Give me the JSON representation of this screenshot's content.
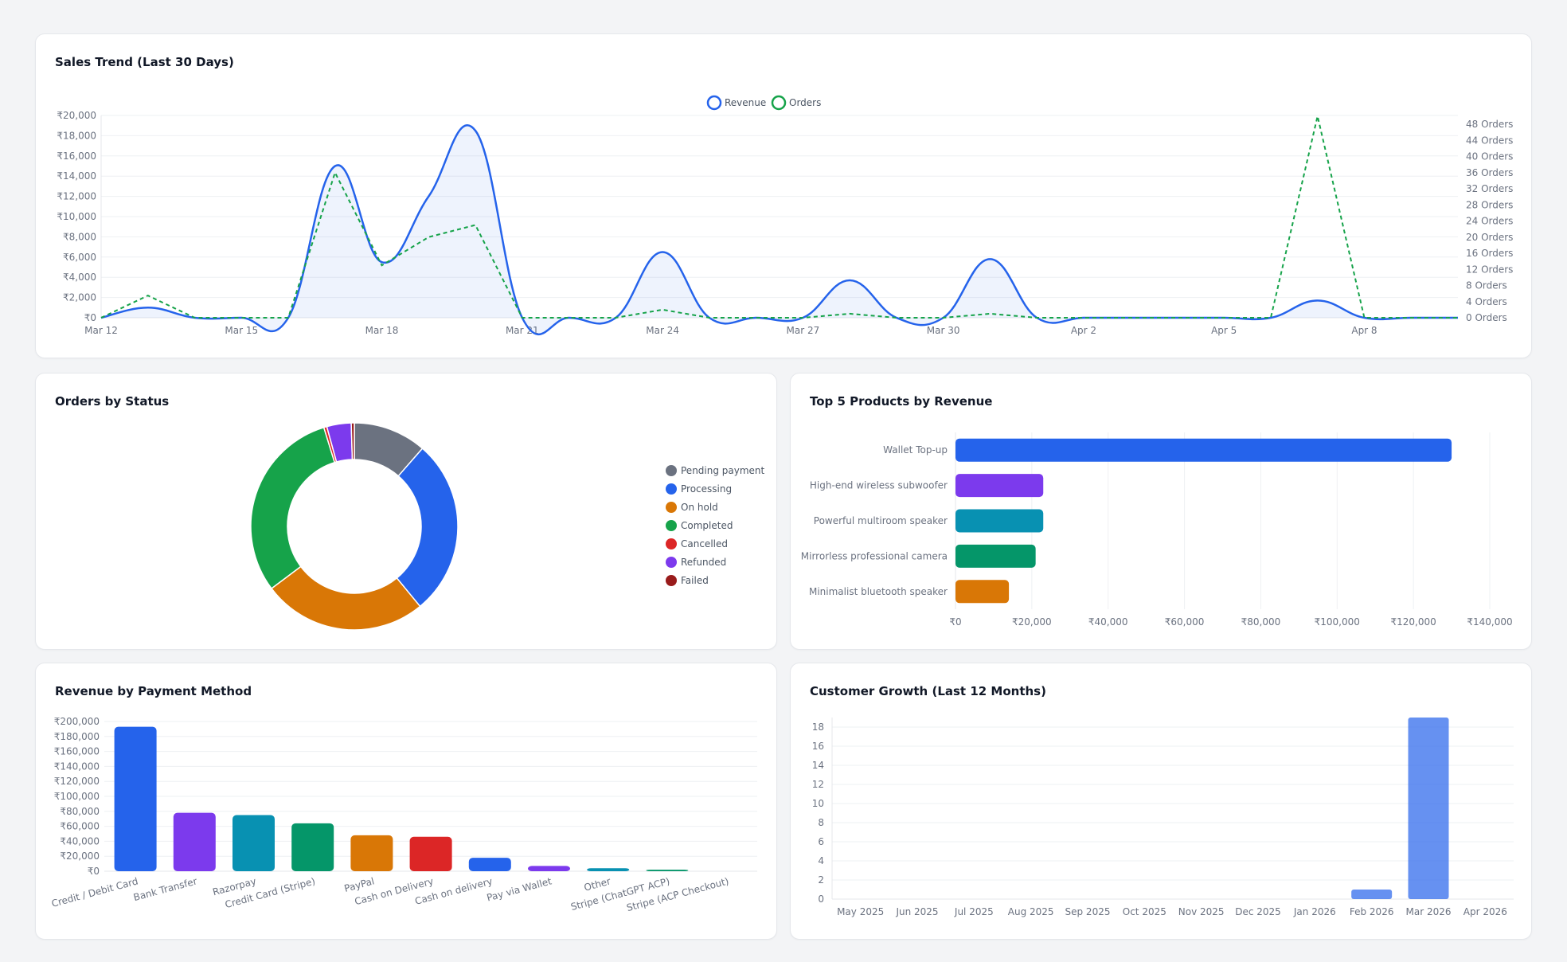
{
  "colors": {
    "revenue": "#2563eb",
    "orders": "#16a34a",
    "grid": "#eef0f3",
    "tick": "#6b7280"
  },
  "cards": {
    "sales_trend": {
      "title": "Sales Trend (Last 30 Days)"
    },
    "orders_by_status": {
      "title": "Orders by Status"
    },
    "top_products": {
      "title": "Top 5 Products by Revenue"
    },
    "payment_methods": {
      "title": "Revenue by Payment Method"
    },
    "customer_growth": {
      "title": "Customer Growth (Last 12 Months)"
    }
  },
  "chart_data": [
    {
      "id": "sales_trend",
      "type": "line",
      "title": "Sales Trend (Last 30 Days)",
      "x": [
        "Mar 12",
        "Mar 13",
        "Mar 14",
        "Mar 15",
        "Mar 16",
        "Mar 17",
        "Mar 18",
        "Mar 19",
        "Mar 20",
        "Mar 21",
        "Mar 22",
        "Mar 23",
        "Mar 24",
        "Mar 25",
        "Mar 26",
        "Mar 27",
        "Mar 28",
        "Mar 29",
        "Mar 30",
        "Mar 31",
        "Apr 1",
        "Apr 2",
        "Apr 3",
        "Apr 4",
        "Apr 5",
        "Apr 6",
        "Apr 7",
        "Apr 8",
        "Apr 9",
        "Apr 10"
      ],
      "x_tick_labels": [
        "Mar 12",
        "Mar 15",
        "Mar 18",
        "Mar 21",
        "Mar 24",
        "Mar 27",
        "Mar 30",
        "Apr 2",
        "Apr 5",
        "Apr 8"
      ],
      "series": [
        {
          "name": "Revenue",
          "axis": "left",
          "style": "solid-fill",
          "color": "#2563eb",
          "values": [
            0,
            1000,
            0,
            0,
            0,
            15000,
            5500,
            12000,
            18500,
            0,
            0,
            0,
            6500,
            0,
            0,
            0,
            3700,
            0,
            0,
            5800,
            0,
            0,
            0,
            0,
            0,
            0,
            1700,
            0,
            0,
            0
          ]
        },
        {
          "name": "Orders",
          "axis": "right",
          "style": "dashed",
          "color": "#16a34a",
          "values": [
            0,
            5.5,
            0,
            0,
            0,
            36,
            13,
            20,
            23,
            0,
            0,
            0,
            2,
            0,
            0,
            0,
            1,
            0,
            0,
            1,
            0,
            0,
            0,
            0,
            0,
            0,
            50,
            0,
            0,
            0
          ]
        }
      ],
      "y_left": {
        "min": 0,
        "max": 20000,
        "step": 2000,
        "tick_labels": [
          "₹0",
          "₹2,000",
          "₹4,000",
          "₹6,000",
          "₹8,000",
          "₹10,000",
          "₹12,000",
          "₹14,000",
          "₹16,000",
          "₹18,000",
          "₹20,000"
        ]
      },
      "y_right": {
        "min": 0,
        "max": 48,
        "step": 4,
        "tick_labels": [
          "0 Orders",
          "4 Orders",
          "8 Orders",
          "12 Orders",
          "16 Orders",
          "20 Orders",
          "24 Orders",
          "28 Orders",
          "32 Orders",
          "36 Orders",
          "40 Orders",
          "44 Orders",
          "48 Orders"
        ]
      },
      "legend": {
        "placement": "top-center",
        "items": [
          "Revenue",
          "Orders"
        ]
      },
      "grid": true
    },
    {
      "id": "orders_by_status",
      "type": "pie",
      "variant": "doughnut",
      "title": "Orders by Status",
      "categories": [
        "Pending payment",
        "Processing",
        "On hold",
        "Completed",
        "Cancelled",
        "Refunded",
        "Failed"
      ],
      "values": [
        12,
        29,
        27,
        32,
        0.5,
        4,
        0.5
      ],
      "colors": [
        "#6b7280",
        "#2563eb",
        "#d97706",
        "#16a34a",
        "#dc2626",
        "#7c3aed",
        "#991b1b"
      ],
      "legend": {
        "placement": "right"
      }
    },
    {
      "id": "top_products",
      "type": "bar",
      "orientation": "horizontal",
      "title": "Top 5 Products by Revenue",
      "categories": [
        "Wallet Top-up",
        "High-end wireless subwoofer",
        "Powerful multiroom speaker",
        "Mirrorless professional camera",
        "Minimalist bluetooth speaker"
      ],
      "values": [
        130000,
        23000,
        23000,
        21000,
        14000
      ],
      "colors": [
        "#2563eb",
        "#7c3aed",
        "#0891b2",
        "#059669",
        "#d97706"
      ],
      "xlim": [
        0,
        140000
      ],
      "x_tick_labels": [
        "₹0",
        "₹20,000",
        "₹40,000",
        "₹60,000",
        "₹80,000",
        "₹100,000",
        "₹120,000",
        "₹140,000"
      ],
      "grid": true
    },
    {
      "id": "payment_methods",
      "type": "bar",
      "title": "Revenue by Payment Method",
      "categories": [
        "Credit / Debit Card",
        "Bank Transfer",
        "Razorpay",
        "Credit Card (Stripe)",
        "PayPal",
        "Cash on Delivery",
        "Cash on delivery",
        "Pay via Wallet",
        "Other",
        "Stripe (ChatGPT ACP)",
        "Stripe (ACP Checkout)"
      ],
      "values": [
        193000,
        78000,
        75000,
        64000,
        48000,
        46000,
        18000,
        7000,
        4000,
        2000,
        0
      ],
      "colors": [
        "#2563eb",
        "#7c3aed",
        "#0891b2",
        "#059669",
        "#d97706",
        "#dc2626",
        "#2563eb",
        "#7c3aed",
        "#0891b2",
        "#059669",
        "#d97706"
      ],
      "ylim": [
        0,
        200000
      ],
      "y_tick_labels": [
        "₹0",
        "₹20,000",
        "₹40,000",
        "₹60,000",
        "₹80,000",
        "₹100,000",
        "₹120,000",
        "₹140,000",
        "₹160,000",
        "₹180,000",
        "₹200,000"
      ],
      "grid": true
    },
    {
      "id": "customer_growth",
      "type": "bar",
      "title": "Customer Growth (Last 12 Months)",
      "categories": [
        "May 2025",
        "Jun 2025",
        "Jul 2025",
        "Aug 2025",
        "Sep 2025",
        "Oct 2025",
        "Nov 2025",
        "Dec 2025",
        "Jan 2026",
        "Feb 2026",
        "Mar 2026",
        "Apr 2026"
      ],
      "values": [
        0,
        0,
        0,
        0,
        0,
        0,
        0,
        0,
        0,
        1,
        19,
        0
      ],
      "color": "#2563eb",
      "ylim": [
        0,
        19
      ],
      "y_tick_labels": [
        "0",
        "2",
        "4",
        "6",
        "8",
        "10",
        "12",
        "14",
        "16",
        "18"
      ],
      "grid": true
    }
  ]
}
